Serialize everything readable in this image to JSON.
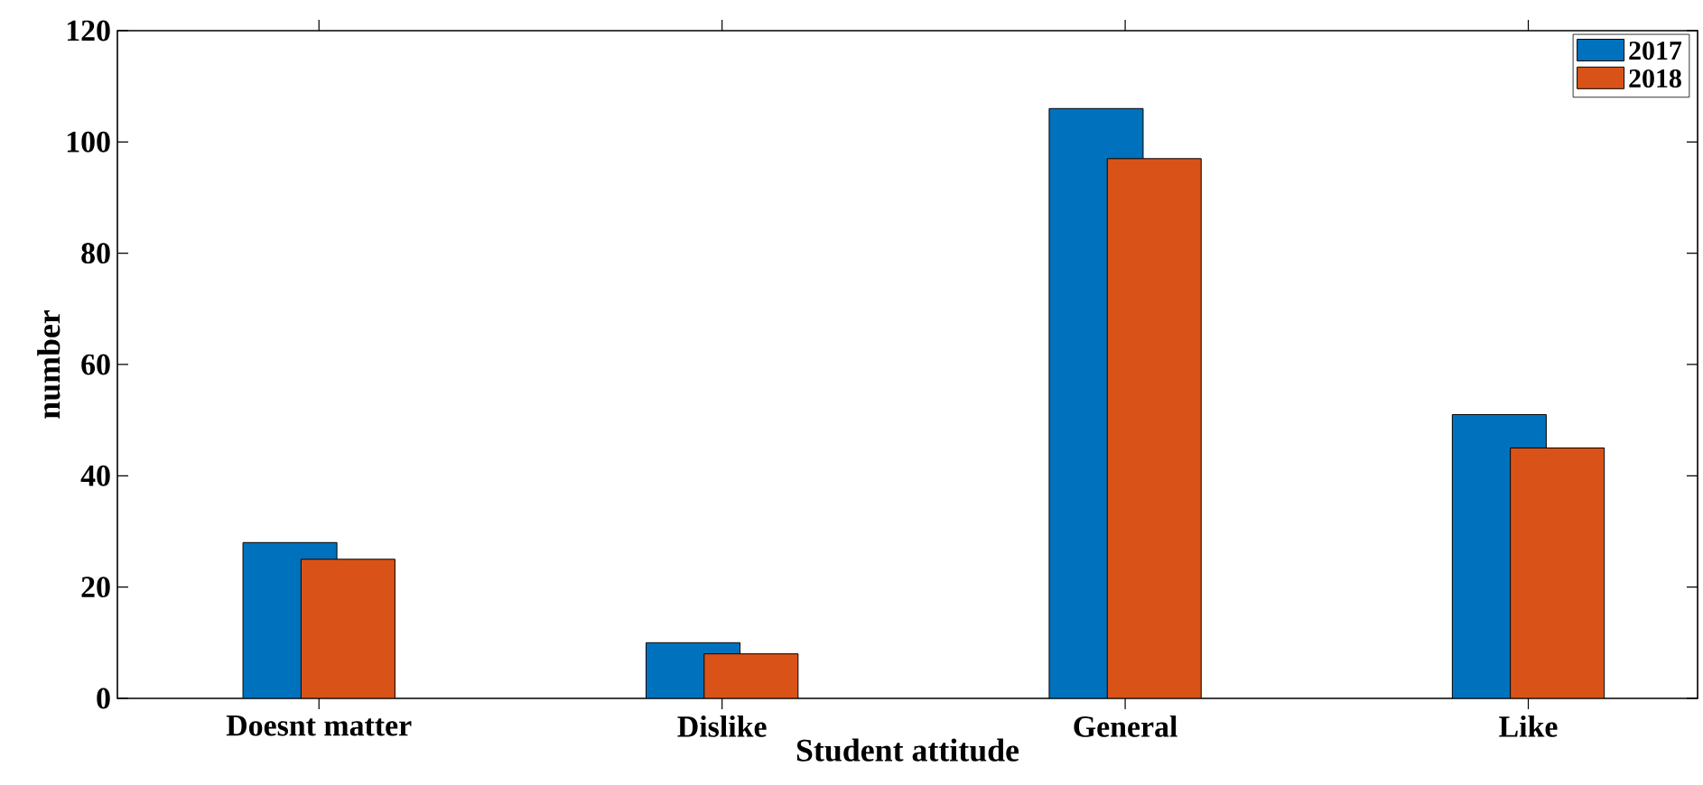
{
  "chart_data": {
    "type": "bar",
    "xlabel": "Student attitude",
    "ylabel": "number",
    "categories": [
      "Doesnt matter",
      "Dislike",
      "General",
      "Like"
    ],
    "series": [
      {
        "name": "2017",
        "color": "#0072bd",
        "values": [
          28,
          10,
          106,
          51
        ]
      },
      {
        "name": "2018",
        "color": "#d95319",
        "values": [
          25,
          8,
          97,
          45
        ]
      }
    ],
    "ylim": [
      0,
      120
    ],
    "yticks": [
      0,
      20,
      40,
      60,
      80,
      100,
      120
    ],
    "legend": "top right",
    "grid": false
  }
}
